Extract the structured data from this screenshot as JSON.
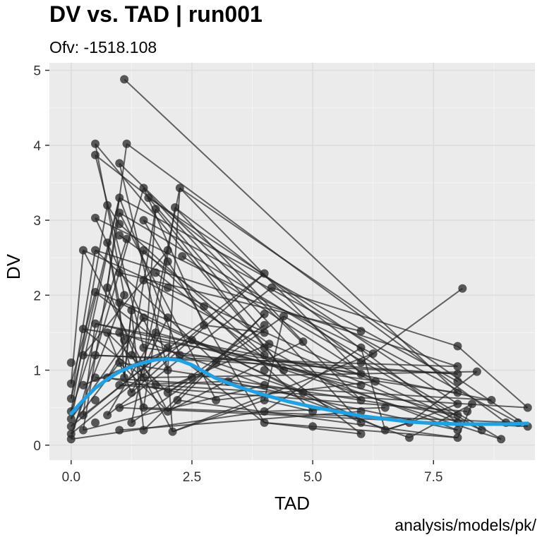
{
  "header": {
    "title": "DV vs. TAD | run001",
    "subtitle": "Ofv: -1518.108",
    "caption": "analysis/models/pk/"
  },
  "colors": {
    "panel": "#ebebeb",
    "grid": "#dddddd",
    "points": "#262626",
    "smooth": "#1aa3e8"
  },
  "chart_data": {
    "type": "scatter",
    "xlabel": "TAD",
    "ylabel": "DV",
    "xlim": [
      -0.45,
      9.6
    ],
    "ylim": [
      -0.2,
      5.1
    ],
    "xticks": [
      0,
      2.5,
      5,
      7.5
    ],
    "xtick_labels": [
      "0.0",
      "2.5",
      "5.0",
      "7.5"
    ],
    "yticks": [
      0,
      1,
      2,
      3,
      4,
      5
    ],
    "ytick_labels": [
      "0",
      "1",
      "2",
      "3",
      "4",
      "5"
    ],
    "grid": true,
    "legend": "none",
    "series": [
      {
        "style": "points-with-lines",
        "points": [
          [
            0.0,
            1.1
          ],
          [
            0.0,
            0.82
          ],
          [
            0.0,
            0.62
          ],
          [
            0.0,
            0.45
          ],
          [
            0.0,
            0.35
          ],
          [
            0.0,
            0.25
          ],
          [
            0.0,
            0.15
          ],
          [
            0.0,
            0.08
          ],
          [
            0.25,
            1.55
          ],
          [
            0.25,
            1.2
          ],
          [
            0.25,
            2.6
          ],
          [
            0.25,
            0.8
          ],
          [
            0.25,
            0.4
          ],
          [
            0.25,
            0.2
          ],
          [
            0.5,
            4.02
          ],
          [
            0.5,
            3.87
          ],
          [
            0.5,
            3.03
          ],
          [
            0.5,
            2.6
          ],
          [
            0.5,
            2.04
          ],
          [
            0.5,
            1.62
          ],
          [
            0.5,
            1.2
          ],
          [
            0.5,
            0.9
          ],
          [
            0.5,
            0.6
          ],
          [
            0.5,
            0.3
          ],
          [
            0.75,
            3.2
          ],
          [
            0.75,
            2.7
          ],
          [
            0.75,
            2.1
          ],
          [
            0.75,
            1.5
          ],
          [
            0.75,
            0.9
          ],
          [
            0.75,
            0.4
          ],
          [
            1.0,
            3.76
          ],
          [
            1.0,
            3.3
          ],
          [
            1.0,
            3.1
          ],
          [
            1.0,
            2.95
          ],
          [
            1.0,
            2.8
          ],
          [
            1.0,
            2.3
          ],
          [
            1.0,
            1.9
          ],
          [
            1.0,
            1.5
          ],
          [
            1.0,
            1.1
          ],
          [
            1.0,
            0.8
          ],
          [
            1.0,
            0.5
          ],
          [
            1.0,
            0.2
          ],
          [
            1.1,
            4.88
          ],
          [
            1.15,
            4.02
          ],
          [
            1.15,
            2.75
          ],
          [
            1.1,
            2.0
          ],
          [
            1.1,
            1.4
          ],
          [
            1.1,
            0.9
          ],
          [
            1.25,
            1.8
          ],
          [
            1.25,
            1.2
          ],
          [
            1.25,
            0.7
          ],
          [
            1.25,
            0.3
          ],
          [
            1.5,
            3.43
          ],
          [
            1.6,
            3.3
          ],
          [
            1.5,
            3.0
          ],
          [
            1.5,
            2.6
          ],
          [
            1.5,
            2.2
          ],
          [
            1.5,
            1.7
          ],
          [
            1.5,
            1.3
          ],
          [
            1.5,
            0.9
          ],
          [
            1.5,
            0.5
          ],
          [
            1.5,
            0.2
          ],
          [
            1.75,
            3.15
          ],
          [
            1.75,
            2.3
          ],
          [
            1.75,
            1.5
          ],
          [
            1.75,
            0.8
          ],
          [
            2.0,
            2.6
          ],
          [
            2.0,
            2.45
          ],
          [
            2.0,
            2.1
          ],
          [
            2.0,
            1.7
          ],
          [
            2.0,
            1.3
          ],
          [
            2.0,
            1.0
          ],
          [
            2.0,
            0.7
          ],
          [
            2.0,
            0.45
          ],
          [
            2.1,
            0.18
          ],
          [
            2.15,
            3.17
          ],
          [
            2.25,
            3.43
          ],
          [
            2.3,
            2.52
          ],
          [
            2.25,
            1.2
          ],
          [
            2.2,
            0.6
          ],
          [
            2.5,
            1.4
          ],
          [
            2.5,
            0.9
          ],
          [
            2.75,
            1.85
          ],
          [
            2.75,
            1.6
          ],
          [
            3.0,
            1.1
          ],
          [
            3.0,
            0.6
          ],
          [
            3.25,
            0.85
          ],
          [
            4.0,
            2.29
          ],
          [
            4.0,
            1.75
          ],
          [
            4.0,
            1.6
          ],
          [
            4.0,
            1.5
          ],
          [
            4.0,
            1.3
          ],
          [
            4.0,
            1.2
          ],
          [
            4.0,
            1.0
          ],
          [
            4.0,
            0.8
          ],
          [
            4.0,
            0.6
          ],
          [
            4.0,
            0.45
          ],
          [
            4.0,
            0.3
          ],
          [
            4.15,
            2.1
          ],
          [
            4.1,
            1.35
          ],
          [
            4.4,
            1.72
          ],
          [
            4.4,
            1.0
          ],
          [
            4.8,
            1.38
          ],
          [
            4.8,
            0.7
          ],
          [
            5.0,
            0.45
          ],
          [
            5.0,
            0.25
          ],
          [
            6.0,
            1.52
          ],
          [
            6.0,
            1.3
          ],
          [
            6.0,
            1.1
          ],
          [
            6.0,
            0.95
          ],
          [
            6.0,
            0.8
          ],
          [
            6.0,
            0.6
          ],
          [
            6.0,
            0.45
          ],
          [
            6.0,
            0.3
          ],
          [
            6.0,
            0.15
          ],
          [
            6.25,
            1.22
          ],
          [
            6.3,
            0.85
          ],
          [
            6.5,
            0.5
          ],
          [
            6.5,
            0.2
          ],
          [
            7.0,
            0.3
          ],
          [
            7.0,
            0.1
          ],
          [
            8.0,
            1.32
          ],
          [
            8.0,
            1.05
          ],
          [
            8.0,
            0.95
          ],
          [
            8.0,
            0.85
          ],
          [
            8.0,
            0.7
          ],
          [
            8.0,
            0.55
          ],
          [
            8.0,
            0.4
          ],
          [
            8.0,
            0.3
          ],
          [
            8.0,
            0.2
          ],
          [
            8.0,
            0.1
          ],
          [
            8.1,
            2.09
          ],
          [
            8.4,
            0.98
          ],
          [
            8.3,
            0.55
          ],
          [
            8.2,
            0.45
          ],
          [
            8.5,
            0.2
          ],
          [
            8.7,
            0.6
          ],
          [
            8.9,
            0.08
          ],
          [
            9.0,
            0.3
          ],
          [
            9.25,
            0.3
          ],
          [
            9.45,
            0.5
          ],
          [
            9.45,
            0.25
          ]
        ]
      },
      {
        "style": "smooth",
        "points": [
          [
            0.0,
            0.42
          ],
          [
            0.25,
            0.6
          ],
          [
            0.5,
            0.76
          ],
          [
            0.75,
            0.88
          ],
          [
            1.0,
            0.98
          ],
          [
            1.25,
            1.05
          ],
          [
            1.5,
            1.1
          ],
          [
            1.75,
            1.14
          ],
          [
            2.0,
            1.15
          ],
          [
            2.25,
            1.13
          ],
          [
            2.5,
            1.07
          ],
          [
            2.75,
            0.98
          ],
          [
            3.0,
            0.89
          ],
          [
            3.5,
            0.77
          ],
          [
            4.0,
            0.67
          ],
          [
            4.5,
            0.58
          ],
          [
            5.0,
            0.51
          ],
          [
            5.5,
            0.45
          ],
          [
            6.0,
            0.39
          ],
          [
            6.5,
            0.35
          ],
          [
            7.0,
            0.31
          ],
          [
            7.5,
            0.29
          ],
          [
            8.0,
            0.28
          ],
          [
            8.5,
            0.28
          ],
          [
            9.0,
            0.28
          ],
          [
            9.45,
            0.29
          ]
        ]
      }
    ]
  }
}
